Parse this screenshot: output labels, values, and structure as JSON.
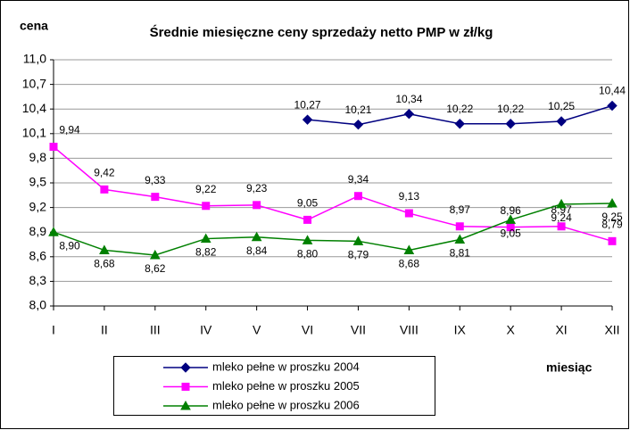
{
  "chart_data": {
    "type": "line",
    "title": "Średnie miesięczne ceny sprzedaży netto PMP w zł/kg",
    "y_label": "cena",
    "x_label": "miesiąc",
    "categories": [
      "I",
      "II",
      "III",
      "IV",
      "V",
      "VI",
      "VII",
      "VIII",
      "IX",
      "X",
      "XI",
      "XII"
    ],
    "series": [
      {
        "name": "mleko pełne w  proszku 2004",
        "color": "#000080",
        "marker": "diamond",
        "values": [
          null,
          null,
          null,
          null,
          null,
          10.27,
          10.21,
          10.34,
          10.22,
          10.22,
          10.25,
          10.44
        ],
        "value_labels": [
          null,
          null,
          null,
          null,
          null,
          "10,27",
          "10,21",
          "10,34",
          "10,22",
          "10,22",
          "10,25",
          "10,44"
        ]
      },
      {
        "name": "mleko pełne w  proszku 2005",
        "color": "#ff00ff",
        "marker": "square",
        "values": [
          9.94,
          9.42,
          9.33,
          9.22,
          9.23,
          9.05,
          9.34,
          9.13,
          8.97,
          8.96,
          8.97,
          8.79
        ],
        "value_labels": [
          "9,94",
          "9,42",
          "9,33",
          "9,22",
          "9,23",
          "9,05",
          "9,34",
          "9,13",
          "8,97",
          "8,96",
          "8,97",
          "8,79"
        ]
      },
      {
        "name": "mleko pełne w  proszku 2006",
        "color": "#008000",
        "marker": "triangle",
        "values": [
          8.9,
          8.68,
          8.62,
          8.82,
          8.84,
          8.8,
          8.79,
          8.68,
          8.81,
          9.05,
          9.24,
          9.25
        ],
        "value_labels": [
          "8,90",
          "8,68",
          "8,62",
          "8,82",
          "8,84",
          "8,80",
          "8,79",
          "8,68",
          "8,81",
          "9,05",
          "9,24",
          "9,25"
        ]
      }
    ],
    "ylim": [
      8.0,
      11.0
    ],
    "yticks": [
      {
        "value": 8.0,
        "label": "8,0"
      },
      {
        "value": 8.3,
        "label": "8,3"
      },
      {
        "value": 8.6,
        "label": "8,6"
      },
      {
        "value": 8.9,
        "label": "8,9"
      },
      {
        "value": 9.2,
        "label": "9,2"
      },
      {
        "value": 9.5,
        "label": "9,5"
      },
      {
        "value": 9.8,
        "label": "9,8"
      },
      {
        "value": 10.1,
        "label": "10,1"
      },
      {
        "value": 10.4,
        "label": "10,4"
      },
      {
        "value": 10.7,
        "label": "10,7"
      },
      {
        "value": 11.0,
        "label": "11,0"
      }
    ],
    "grid": true
  }
}
